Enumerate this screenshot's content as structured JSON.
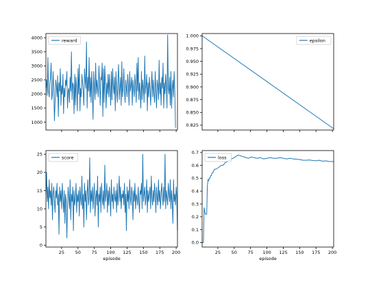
{
  "chart_data": [
    {
      "type": "line",
      "legend": {
        "entries": [
          "reward"
        ],
        "placement": "top-left"
      },
      "xlim": [
        1,
        202
      ],
      "ylim": [
        720,
        4150
      ],
      "xticks": [],
      "yticks": [
        1000,
        1500,
        2000,
        2500,
        3000,
        3500,
        4000
      ],
      "yticklabels": [
        "1000",
        "1500",
        "2000",
        "2500",
        "3000",
        "3500",
        "4000"
      ],
      "xlabel": "",
      "grid": false,
      "series": [
        {
          "name": "reward",
          "color": "#1f77b4",
          "x_start": 1,
          "values": [
            2200,
            2500,
            1950,
            3300,
            2100,
            1900,
            2400,
            2600,
            3100,
            1800,
            2000,
            2800,
            2200,
            1050,
            1700,
            2500,
            2300,
            1900,
            2650,
            1200,
            2400,
            2100,
            2900,
            1600,
            2300,
            2000,
            2700,
            1300,
            2200,
            1900,
            2500,
            2300,
            2800,
            1500,
            2100,
            2200,
            1700,
            2600,
            2100,
            3500,
            1800,
            2400,
            2300,
            1300,
            2700,
            1600,
            2600,
            2200,
            1400,
            2900,
            2000,
            3050,
            1400,
            2200,
            1900,
            2700,
            2400,
            2100,
            1600,
            2900,
            2500,
            2200,
            3850,
            1500,
            2600,
            2100,
            3300,
            1900,
            2600,
            1700,
            2800,
            2100,
            1100,
            2800,
            2200,
            1800,
            3100,
            2000,
            2500,
            2200,
            1900,
            3000,
            2400,
            1600,
            2600,
            2500,
            3100,
            1200,
            2900,
            1700,
            3000,
            2300,
            1500,
            2400,
            2000,
            2700,
            1900,
            2700,
            2100,
            1600,
            2800,
            1800,
            2900,
            2300,
            2000,
            2600,
            1400,
            2800,
            2200,
            1700,
            2500,
            3050,
            1800,
            2200,
            2600,
            1600,
            3150,
            1900,
            2200,
            2900,
            2100,
            1700,
            2500,
            2200,
            1900,
            2700,
            2300,
            1600,
            2800,
            2100,
            2300,
            2600,
            1600,
            2500,
            2200,
            1900,
            2700,
            2300,
            1700,
            3100,
            2100,
            3300,
            1800,
            2400,
            2000,
            1500,
            2800,
            1800,
            2500,
            2200,
            1700,
            3350,
            2000,
            2300,
            2700,
            1400,
            2400,
            1900,
            2600,
            2200,
            1600,
            2300,
            2800,
            1900,
            2500,
            2000,
            1700,
            2800,
            2100,
            1500,
            2500,
            2300,
            1800,
            3200,
            2000,
            2400,
            1600,
            2600,
            2200,
            3100,
            1500,
            2400,
            2000,
            2700,
            2300,
            1500,
            4100,
            2200,
            2000,
            2600,
            1600,
            2800,
            1500,
            2200,
            2500,
            1900,
            2800,
            2100,
            800
          ]
        }
      ]
    },
    {
      "type": "line",
      "legend": {
        "entries": [
          "epsilon"
        ],
        "placement": "top-right"
      },
      "xlim": [
        1,
        202
      ],
      "ylim": [
        0.8155,
        1.0045
      ],
      "xticks": [],
      "yticks": [
        0.825,
        0.85,
        0.875,
        0.9,
        0.925,
        0.95,
        0.975,
        1.0
      ],
      "yticklabels": [
        "0.825",
        "0.850",
        "0.875",
        "0.900",
        "0.925",
        "0.950",
        "0.975",
        "1.000"
      ],
      "xlabel": "",
      "grid": false,
      "series": [
        {
          "name": "epsilon",
          "color": "#1f77b4",
          "x": [
            1,
            202
          ],
          "values": [
            1.0,
            0.818
          ]
        }
      ]
    },
    {
      "type": "line",
      "legend": {
        "entries": [
          "score"
        ],
        "placement": "top-left"
      },
      "xlim": [
        1,
        202
      ],
      "ylim": [
        -0.5,
        26
      ],
      "xticks": [
        25,
        50,
        75,
        100,
        125,
        150,
        175,
        200
      ],
      "xticklabels": [
        "25",
        "50",
        "75",
        "100",
        "125",
        "150",
        "175",
        "200"
      ],
      "yticks": [
        0,
        5,
        10,
        15,
        20,
        25
      ],
      "yticklabels": [
        "0",
        "5",
        "10",
        "15",
        "20",
        "25"
      ],
      "xlabel": "episode",
      "grid": false,
      "series": [
        {
          "name": "score",
          "color": "#1f77b4",
          "x_start": 1,
          "values": [
            14,
            20,
            12,
            16,
            10,
            18,
            13,
            15,
            11,
            17,
            7,
            14,
            16,
            12,
            9,
            15,
            13,
            17,
            11,
            14,
            3,
            16,
            12,
            15,
            10,
            17,
            13,
            9,
            15,
            6,
            14,
            12,
            2,
            11,
            16,
            13,
            10,
            18,
            7,
            14,
            12,
            16,
            4,
            15,
            11,
            13,
            17,
            9,
            14,
            12,
            15,
            8,
            16,
            13,
            11,
            19,
            10,
            14,
            5,
            17,
            12,
            15,
            7,
            14,
            18,
            11,
            13,
            24,
            9,
            15,
            12,
            16,
            10,
            14,
            17,
            8,
            13,
            15,
            11,
            19,
            5,
            14,
            12,
            16,
            9,
            17,
            13,
            11,
            15,
            10,
            22,
            12,
            14,
            17,
            9,
            15,
            11,
            16,
            13,
            8,
            18,
            12,
            14,
            10,
            16,
            13,
            12,
            15,
            9,
            17,
            11,
            14,
            19,
            12,
            16,
            10,
            14,
            13,
            15,
            11,
            17,
            9,
            14,
            4,
            16,
            12,
            15,
            10,
            18,
            13,
            11,
            16,
            14,
            7,
            15,
            12,
            17,
            10,
            14,
            13,
            11,
            16,
            12,
            9,
            15,
            14,
            17,
            10,
            25,
            12,
            14,
            16,
            11,
            13,
            18,
            9,
            15,
            12,
            14,
            16,
            10,
            19,
            13,
            11,
            15,
            12,
            17,
            14,
            9,
            16,
            13,
            11,
            18,
            12,
            15,
            10,
            14,
            17,
            13,
            11,
            16,
            12,
            25,
            10,
            15,
            13,
            11,
            17,
            14,
            12,
            18,
            10,
            15,
            12,
            6,
            18,
            12,
            14,
            11,
            16,
            13,
            4
          ]
        }
      ]
    },
    {
      "type": "line",
      "legend": {
        "entries": [
          "loss"
        ],
        "placement": "top-left"
      },
      "xlim": [
        1,
        202
      ],
      "ylim": [
        -0.035,
        0.715
      ],
      "xticks": [
        25,
        50,
        75,
        100,
        125,
        150,
        175,
        200
      ],
      "xticklabels": [
        "25",
        "50",
        "75",
        "100",
        "125",
        "150",
        "175",
        "200"
      ],
      "yticks": [
        0.0,
        0.1,
        0.2,
        0.3,
        0.4,
        0.5,
        0.6,
        0.7
      ],
      "yticklabels": [
        "0.0",
        "0.1",
        "0.2",
        "0.3",
        "0.4",
        "0.5",
        "0.6",
        "0.7"
      ],
      "xlabel": "episode",
      "grid": false,
      "series": [
        {
          "name": "loss",
          "color": "#1f77b4",
          "x": [
            1,
            2,
            3,
            4,
            5,
            6,
            7,
            8,
            9,
            10,
            11,
            12,
            13,
            14,
            15,
            16,
            17,
            18,
            19,
            20,
            22,
            25,
            28,
            30,
            33,
            36,
            40,
            43,
            46,
            50,
            53,
            56,
            59,
            62,
            65,
            68,
            72,
            76,
            80,
            85,
            90,
            95,
            100,
            105,
            110,
            115,
            120,
            125,
            130,
            135,
            140,
            145,
            150,
            155,
            160,
            165,
            170,
            175,
            180,
            185,
            190,
            195,
            200,
            202
          ],
          "values": [
            0.0,
            0.0,
            0.0,
            0.27,
            0.24,
            0.22,
            0.22,
            0.22,
            0.44,
            0.49,
            0.48,
            0.5,
            0.5,
            0.52,
            0.52,
            0.54,
            0.54,
            0.55,
            0.56,
            0.57,
            0.57,
            0.58,
            0.59,
            0.6,
            0.6,
            0.62,
            0.63,
            0.64,
            0.65,
            0.66,
            0.67,
            0.68,
            0.675,
            0.67,
            0.665,
            0.66,
            0.655,
            0.665,
            0.66,
            0.655,
            0.66,
            0.65,
            0.655,
            0.66,
            0.655,
            0.655,
            0.66,
            0.655,
            0.65,
            0.655,
            0.65,
            0.648,
            0.645,
            0.64,
            0.64,
            0.642,
            0.638,
            0.635,
            0.64,
            0.632,
            0.635,
            0.63,
            0.63,
            0.628
          ]
        }
      ]
    }
  ]
}
